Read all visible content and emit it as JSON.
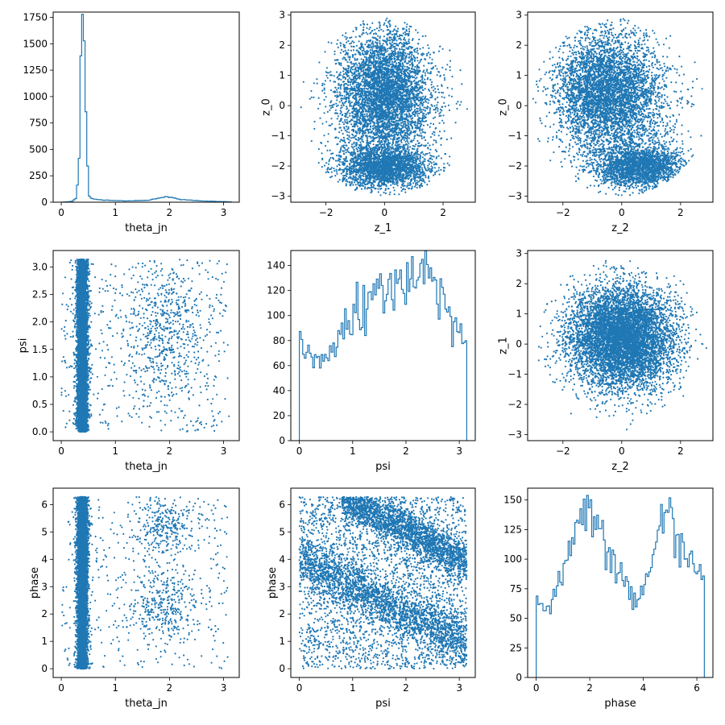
{
  "figure": {
    "color": "#1f77b4",
    "background": "#ffffff"
  },
  "chart_data": [
    {
      "id": "theta_jn-hist",
      "type": "histogram",
      "title": "",
      "xlabel": "theta_jn",
      "ylabel": "",
      "xlim": [
        -0.15,
        3.29
      ],
      "ylim": [
        0,
        1800
      ],
      "xticks": [
        0,
        1,
        2,
        3
      ],
      "xticklabels": [
        "0",
        "1",
        "2",
        "3"
      ],
      "yticks": [
        0,
        250,
        500,
        750,
        1000,
        1250,
        1500,
        1750
      ],
      "yticklabels": [
        "0",
        "250",
        "500",
        "750",
        "1000",
        "1250",
        "1500",
        "1750"
      ],
      "bins": {
        "start": 0.0,
        "end": 3.14,
        "step": 0.0314
      },
      "profile": [
        [
          0,
          0
        ],
        [
          0.2,
          8
        ],
        [
          0.28,
          40
        ],
        [
          0.33,
          400
        ],
        [
          0.36,
          1450
        ],
        [
          0.38,
          1710
        ],
        [
          0.4,
          1700
        ],
        [
          0.44,
          1400
        ],
        [
          0.47,
          450
        ],
        [
          0.52,
          40
        ],
        [
          0.7,
          22
        ],
        [
          1.2,
          12
        ],
        [
          1.6,
          18
        ],
        [
          1.95,
          55
        ],
        [
          2.2,
          25
        ],
        [
          2.6,
          12
        ],
        [
          3.1,
          4
        ],
        [
          3.14,
          2
        ]
      ],
      "noise": 0.06,
      "seed": 11
    },
    {
      "id": "z_1-vs-z_0",
      "type": "scatter",
      "title": "",
      "xlabel": "z_1",
      "ylabel": "z_0",
      "xlim": [
        -3.2,
        3.1
      ],
      "ylim": [
        -3.2,
        3.1
      ],
      "xticks": [
        -2,
        0,
        2
      ],
      "xticklabels": [
        "−2",
        "0",
        "2"
      ],
      "yticks": [
        -3,
        -2,
        -1,
        0,
        1,
        2,
        3
      ],
      "yticklabels": [
        "−3",
        "−2",
        "−1",
        "0",
        "1",
        "2",
        "3"
      ],
      "points": 7000,
      "seed": 21,
      "components": [
        {
          "w": 0.45,
          "mx": 0.0,
          "my": 0.6,
          "sx": 0.75,
          "sy": 0.95
        },
        {
          "w": 0.3,
          "mx": 0.0,
          "my": -2.05,
          "sx": 0.8,
          "sy": 0.35
        },
        {
          "w": 0.25,
          "mx": 0.0,
          "my": -0.3,
          "sx": 0.9,
          "sy": 1.2
        }
      ],
      "clip": {
        "type": "ellipse",
        "cx": 0,
        "cy": -0.05,
        "rx": 3.0,
        "ry": 2.95
      }
    },
    {
      "id": "z_2-vs-z_0",
      "type": "scatter",
      "title": "",
      "xlabel": "z_2",
      "ylabel": "z_0",
      "xlim": [
        -3.2,
        3.1
      ],
      "ylim": [
        -3.2,
        3.1
      ],
      "xticks": [
        -2,
        0,
        2
      ],
      "xticklabels": [
        "−2",
        "0",
        "2"
      ],
      "yticks": [
        -3,
        -2,
        -1,
        0,
        1,
        2,
        3
      ],
      "yticklabels": [
        "−3",
        "−2",
        "−1",
        "0",
        "1",
        "2",
        "3"
      ],
      "points": 7000,
      "seed": 31,
      "components": [
        {
          "w": 0.45,
          "mx": -0.6,
          "my": 0.6,
          "sx": 0.85,
          "sy": 0.9
        },
        {
          "w": 0.3,
          "mx": 0.6,
          "my": -2.05,
          "sx": 0.75,
          "sy": 0.35
        },
        {
          "w": 0.25,
          "mx": 0.0,
          "my": -0.3,
          "sx": 1.0,
          "sy": 1.2
        }
      ],
      "clip": {
        "type": "ellipse",
        "cx": -0.1,
        "cy": -0.05,
        "rx": 3.0,
        "ry": 2.95
      }
    },
    {
      "id": "theta_jn-vs-psi",
      "type": "scatter",
      "title": "",
      "xlabel": "theta_jn",
      "ylabel": "psi",
      "xlim": [
        -0.15,
        3.29
      ],
      "ylim": [
        -0.16,
        3.3
      ],
      "xticks": [
        0,
        1,
        2,
        3
      ],
      "xticklabels": [
        "0",
        "1",
        "2",
        "3"
      ],
      "yticks": [
        0,
        0.5,
        1,
        1.5,
        2,
        2.5,
        3
      ],
      "yticklabels": [
        "0.0",
        "0.5",
        "1.0",
        "1.5",
        "2.0",
        "2.5",
        "3.0"
      ],
      "points": 7000,
      "seed": 41,
      "components": [
        {
          "w": 0.85,
          "mx": 0.39,
          "sx": 0.05,
          "ydist": "uniform",
          "ymin": 0.0,
          "ymax": 3.14
        },
        {
          "w": 0.08,
          "mx": 1.9,
          "sx": 0.35,
          "my": 1.85,
          "sy": 0.7
        },
        {
          "w": 0.07,
          "xdist": "uniform",
          "xmin": 0.0,
          "xmax": 3.1,
          "ydist": "uniform",
          "ymin": 0.0,
          "ymax": 3.14
        }
      ],
      "clip": {
        "type": "box",
        "xmin": 0.0,
        "xmax": 3.1,
        "ymin": 0.0,
        "ymax": 3.14
      }
    },
    {
      "id": "psi-hist",
      "type": "histogram",
      "title": "",
      "xlabel": "psi",
      "ylabel": "",
      "xlim": [
        -0.16,
        3.3
      ],
      "ylim": [
        0,
        152
      ],
      "xticks": [
        0,
        1,
        2,
        3
      ],
      "xticklabels": [
        "0",
        "1",
        "2",
        "3"
      ],
      "yticks": [
        0,
        20,
        40,
        60,
        80,
        100,
        120,
        140
      ],
      "yticklabels": [
        "0",
        "20",
        "40",
        "60",
        "80",
        "100",
        "120",
        "140"
      ],
      "bins": {
        "start": 0.0,
        "end": 3.14,
        "step": 0.0314
      },
      "profile": [
        [
          0,
          75
        ],
        [
          0.3,
          60
        ],
        [
          0.7,
          78
        ],
        [
          1.0,
          95
        ],
        [
          1.4,
          110
        ],
        [
          1.8,
          125
        ],
        [
          2.15,
          138
        ],
        [
          2.4,
          133
        ],
        [
          2.75,
          110
        ],
        [
          3.14,
          75
        ]
      ],
      "noise": 0.1,
      "seed": 51
    },
    {
      "id": "z_2-vs-z_1",
      "type": "scatter",
      "title": "",
      "xlabel": "z_2",
      "ylabel": "z_1",
      "xlim": [
        -3.2,
        3.1
      ],
      "ylim": [
        -3.2,
        3.1
      ],
      "xticks": [
        -2,
        0,
        2
      ],
      "xticklabels": [
        "−2",
        "0",
        "2"
      ],
      "yticks": [
        -3,
        -2,
        -1,
        0,
        1,
        2,
        3
      ],
      "yticklabels": [
        "−3",
        "−2",
        "−1",
        "0",
        "1",
        "2",
        "3"
      ],
      "points": 7000,
      "seed": 61,
      "components": [
        {
          "w": 0.6,
          "mx": -0.2,
          "my": 0.3,
          "sx": 0.9,
          "sy": 0.8
        },
        {
          "w": 0.4,
          "mx": 0.3,
          "my": 0.1,
          "sx": 0.8,
          "sy": 0.9
        }
      ],
      "clip": {
        "type": "ellipse",
        "cx": 0,
        "cy": 0,
        "rx": 2.9,
        "ry": 2.9
      }
    },
    {
      "id": "theta_jn-vs-phase",
      "type": "scatter",
      "title": "",
      "xlabel": "theta_jn",
      "ylabel": "phase",
      "xlim": [
        -0.15,
        3.29
      ],
      "ylim": [
        -0.32,
        6.6
      ],
      "xticks": [
        0,
        1,
        2,
        3
      ],
      "xticklabels": [
        "0",
        "1",
        "2",
        "3"
      ],
      "yticks": [
        0,
        1,
        2,
        3,
        4,
        5,
        6
      ],
      "yticklabels": [
        "0",
        "1",
        "2",
        "3",
        "4",
        "5",
        "6"
      ],
      "points": 7000,
      "seed": 71,
      "components": [
        {
          "w": 0.85,
          "mx": 0.39,
          "sx": 0.05,
          "ydist": "uniform",
          "ymin": 0.0,
          "ymax": 6.28
        },
        {
          "w": 0.045,
          "mx": 1.9,
          "sx": 0.3,
          "my": 2.3,
          "sy": 0.7
        },
        {
          "w": 0.045,
          "mx": 1.9,
          "sx": 0.3,
          "my": 5.2,
          "sy": 0.6
        },
        {
          "w": 0.06,
          "xdist": "uniform",
          "xmin": 0.0,
          "xmax": 3.1,
          "ydist": "uniform",
          "ymin": 0.0,
          "ymax": 6.28
        }
      ],
      "clip": {
        "type": "box",
        "xmin": 0.0,
        "xmax": 3.1,
        "ymin": 0.0,
        "ymax": 6.28
      }
    },
    {
      "id": "psi-vs-phase",
      "type": "scatter",
      "title": "",
      "xlabel": "psi",
      "ylabel": "phase",
      "xlim": [
        -0.16,
        3.3
      ],
      "ylim": [
        -0.32,
        6.6
      ],
      "xticks": [
        0,
        1,
        2,
        3
      ],
      "xticklabels": [
        "0",
        "1",
        "2",
        "3"
      ],
      "yticks": [
        0,
        1,
        2,
        3,
        4,
        5,
        6
      ],
      "yticklabels": [
        "0",
        "1",
        "2",
        "3",
        "4",
        "5",
        "6"
      ],
      "points": 7000,
      "seed": 81,
      "components": [
        {
          "w": 0.32,
          "band": {
            "x0": 0.0,
            "x1": 3.14,
            "y0": 4.0,
            "y1": 0.9,
            "spread": 0.45
          }
        },
        {
          "w": 0.32,
          "band": {
            "x0": 0.8,
            "x1": 3.14,
            "y0": 6.28,
            "y1": 3.9,
            "spread": 0.4
          }
        },
        {
          "w": 0.36,
          "xdist": "uniform",
          "xmin": 0.0,
          "xmax": 3.14,
          "ydist": "uniform",
          "ymin": 0.0,
          "ymax": 6.28
        }
      ],
      "clip": {
        "type": "box",
        "xmin": 0.0,
        "xmax": 3.14,
        "ymin": 0.0,
        "ymax": 6.28
      }
    },
    {
      "id": "phase-hist",
      "type": "histogram",
      "title": "",
      "xlabel": "phase",
      "ylabel": "",
      "xlim": [
        -0.32,
        6.6
      ],
      "ylim": [
        0,
        160
      ],
      "xticks": [
        0,
        2,
        4,
        6
      ],
      "xticklabels": [
        "0",
        "2",
        "4",
        "6"
      ],
      "yticks": [
        0,
        25,
        50,
        75,
        100,
        125,
        150
      ],
      "yticklabels": [
        "0",
        "25",
        "50",
        "75",
        "100",
        "125",
        "150"
      ],
      "bins": {
        "start": 0.0,
        "end": 6.28,
        "step": 0.0628
      },
      "profile": [
        [
          0,
          65
        ],
        [
          0.4,
          55
        ],
        [
          0.9,
          80
        ],
        [
          1.4,
          115
        ],
        [
          1.9,
          145
        ],
        [
          2.3,
          135
        ],
        [
          2.8,
          100
        ],
        [
          3.4,
          75
        ],
        [
          3.8,
          68
        ],
        [
          4.2,
          85
        ],
        [
          4.6,
          120
        ],
        [
          4.95,
          148
        ],
        [
          5.4,
          110
        ],
        [
          5.9,
          95
        ],
        [
          6.28,
          82
        ]
      ],
      "noise": 0.08,
      "seed": 91
    }
  ]
}
